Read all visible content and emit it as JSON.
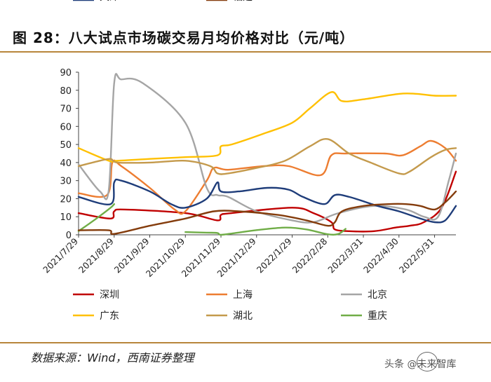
{
  "page": {
    "title": "图 28：八大试点市场碳交易月均价格对比（元/吨）",
    "source": "数据来源：Wind，西南证券整理",
    "watermark": "头条 @未来智库",
    "accent_color": "#b8863b"
  },
  "chart_data": {
    "type": "line",
    "title": "八大试点市场碳交易月均价格对比（元/吨）",
    "ylim": [
      0,
      90
    ],
    "yticks": [
      0,
      10,
      20,
      30,
      40,
      50,
      60,
      70,
      80,
      90
    ],
    "x_range": [
      0,
      10.6
    ],
    "xlabels": [
      {
        "pos": 0,
        "label": "2021/7/29"
      },
      {
        "pos": 1,
        "label": "2021/8/29"
      },
      {
        "pos": 2,
        "label": "2021/9/29"
      },
      {
        "pos": 3,
        "label": "2021/10/29"
      },
      {
        "pos": 4,
        "label": "2021/11/29"
      },
      {
        "pos": 5,
        "label": "2021/12/29"
      },
      {
        "pos": 6,
        "label": "2022/1/29"
      },
      {
        "pos": 7,
        "label": "2022/2/28"
      },
      {
        "pos": 8,
        "label": "2022/3/31"
      },
      {
        "pos": 9,
        "label": "2022/4/30"
      },
      {
        "pos": 10,
        "label": "2022/5/31"
      }
    ],
    "series": [
      {
        "name": "深圳",
        "color": "#c00000",
        "points": [
          [
            0,
            12
          ],
          [
            0.9,
            9
          ],
          [
            1,
            13
          ],
          [
            1.3,
            14
          ],
          [
            3,
            12
          ],
          [
            3.9,
            8
          ],
          [
            4,
            11
          ],
          [
            4.3,
            12
          ],
          [
            6,
            15
          ],
          [
            6.6,
            12
          ],
          [
            7.1,
            7
          ],
          [
            7.2,
            3
          ],
          [
            7.6,
            2
          ],
          [
            8.3,
            2
          ],
          [
            8.9,
            4
          ],
          [
            9.3,
            5
          ],
          [
            9.7,
            7
          ],
          [
            10.2,
            15
          ],
          [
            10.6,
            35
          ]
        ]
      },
      {
        "name": "上海",
        "color": "#ed7d31",
        "points": [
          [
            0,
            23
          ],
          [
            0.8,
            22
          ],
          [
            0.95,
            40
          ],
          [
            1.2,
            38
          ],
          [
            2,
            26
          ],
          [
            2.7,
            14
          ],
          [
            3,
            13
          ],
          [
            3.6,
            30
          ],
          [
            3.8,
            37
          ],
          [
            4.2,
            36
          ],
          [
            5.2,
            38
          ],
          [
            5.9,
            38
          ],
          [
            6.8,
            33
          ],
          [
            7.1,
            44
          ],
          [
            7.5,
            45
          ],
          [
            8.6,
            45
          ],
          [
            9.1,
            44
          ],
          [
            9.6,
            49
          ],
          [
            9.9,
            52
          ],
          [
            10.3,
            48
          ],
          [
            10.6,
            41
          ]
        ]
      },
      {
        "name": "北京",
        "color": "#a5a5a5",
        "points": [
          [
            0,
            39
          ],
          [
            0.6,
            24
          ],
          [
            0.85,
            25
          ],
          [
            1,
            84
          ],
          [
            1.2,
            86
          ],
          [
            1.8,
            84
          ],
          [
            3,
            62
          ],
          [
            3.6,
            26
          ],
          [
            3.9,
            22
          ],
          [
            4.2,
            21
          ],
          [
            5,
            13
          ],
          [
            6,
            8
          ],
          [
            6.6,
            7
          ],
          [
            7.3,
            12
          ],
          [
            8.3,
            16
          ],
          [
            9.2,
            14
          ],
          [
            9.7,
            10
          ],
          [
            10.1,
            10
          ],
          [
            10.4,
            30
          ],
          [
            10.6,
            45
          ]
        ]
      },
      {
        "name": "广东",
        "color": "#ffc000",
        "points": [
          [
            0,
            48
          ],
          [
            0.85,
            41
          ],
          [
            1.1,
            41
          ],
          [
            2,
            42
          ],
          [
            3,
            43
          ],
          [
            3.9,
            44
          ],
          [
            4,
            49
          ],
          [
            4.3,
            50
          ],
          [
            5.2,
            56
          ],
          [
            6,
            62
          ],
          [
            6.5,
            70
          ],
          [
            7.1,
            79
          ],
          [
            7.4,
            74
          ],
          [
            8,
            75
          ],
          [
            9,
            78
          ],
          [
            9.5,
            78
          ],
          [
            10,
            77
          ],
          [
            10.6,
            77
          ]
        ]
      },
      {
        "name": "湖北",
        "color": "#c49a4c",
        "points": [
          [
            0,
            38
          ],
          [
            0.6,
            41
          ],
          [
            0.9,
            42
          ],
          [
            1.1,
            40
          ],
          [
            2,
            40
          ],
          [
            3,
            41
          ],
          [
            3.7,
            38
          ],
          [
            3.9,
            34
          ],
          [
            4.2,
            34
          ],
          [
            5,
            37
          ],
          [
            5.8,
            41
          ],
          [
            6.5,
            49
          ],
          [
            7,
            53
          ],
          [
            7.6,
            45
          ],
          [
            8.2,
            40
          ],
          [
            9,
            34
          ],
          [
            9.3,
            35
          ],
          [
            9.9,
            43
          ],
          [
            10.3,
            47
          ],
          [
            10.6,
            48
          ]
        ]
      },
      {
        "name": "重庆",
        "color": "#70ad47",
        "points": [
          [
            0,
            2
          ],
          [
            0.5,
            9
          ],
          [
            0.9,
            15
          ],
          [
            1,
            17
          ]
        ],
        "points2": [
          [
            3,
            1.5
          ],
          [
            3.6,
            1.2
          ],
          [
            3.9,
            1
          ],
          [
            4,
            0
          ],
          [
            4.4,
            1
          ],
          [
            5,
            2.6
          ],
          [
            5.8,
            4
          ],
          [
            6.4,
            3
          ],
          [
            7,
            0.3
          ],
          [
            7.3,
            0.5
          ],
          [
            7.5,
            3.3
          ]
        ]
      },
      {
        "name": "天津",
        "color": "#1f3d7a",
        "points": [
          [
            0,
            21
          ],
          [
            0.9,
            17
          ],
          [
            1,
            29
          ],
          [
            1.2,
            30
          ],
          [
            2,
            24
          ],
          [
            2.6,
            17
          ],
          [
            3,
            15
          ],
          [
            3.6,
            20
          ],
          [
            3.9,
            29
          ],
          [
            4,
            24
          ],
          [
            4.5,
            24
          ],
          [
            5.3,
            26
          ],
          [
            5.9,
            25
          ],
          [
            6.3,
            21
          ],
          [
            6.9,
            17
          ],
          [
            7.2,
            22
          ],
          [
            7.6,
            21
          ],
          [
            8.4,
            16
          ],
          [
            9,
            13
          ],
          [
            9.6,
            9
          ],
          [
            10,
            7
          ],
          [
            10.3,
            8
          ],
          [
            10.6,
            16
          ]
        ]
      },
      {
        "name": "福建",
        "color": "#843c0c",
        "points": [
          [
            0,
            2.5
          ],
          [
            0.85,
            2.5
          ],
          [
            1,
            0.5
          ],
          [
            2,
            5
          ],
          [
            3,
            9
          ],
          [
            3.8,
            13
          ],
          [
            4.5,
            13
          ],
          [
            5.6,
            11
          ],
          [
            6.4,
            8
          ],
          [
            7,
            5
          ],
          [
            7.2,
            7
          ],
          [
            7.4,
            13
          ],
          [
            8,
            16
          ],
          [
            8.7,
            17
          ],
          [
            9.2,
            17
          ],
          [
            9.6,
            16
          ],
          [
            10,
            14
          ],
          [
            10.3,
            18
          ],
          [
            10.6,
            24
          ]
        ]
      }
    ],
    "legend": {
      "columns": 3,
      "placement": "bottom"
    }
  }
}
